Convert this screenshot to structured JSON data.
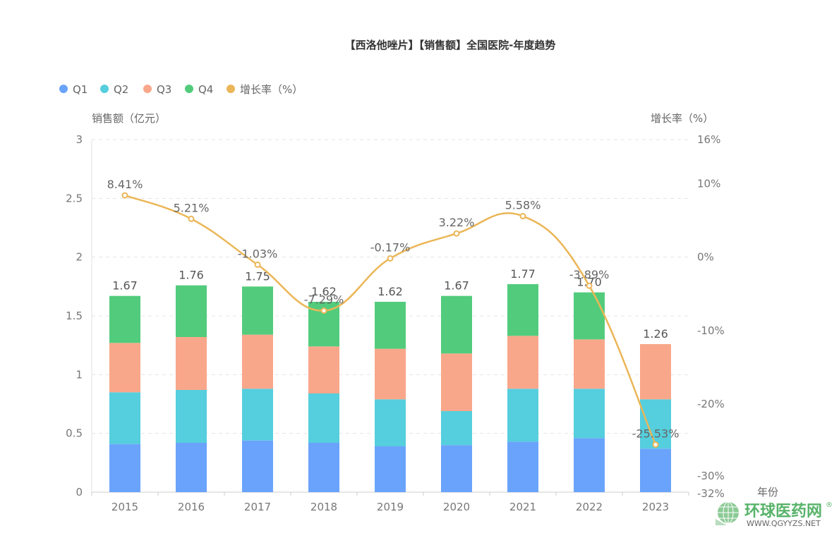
{
  "chart_data": {
    "type": "bar",
    "subtype": "stacked-bar-with-line",
    "title": "【西洛他唑片】【销售额】全国医院-年度趋势",
    "xlabel": "年份",
    "ylabel": "销售额（亿元）",
    "y2label": "增长率（%）",
    "categories": [
      "2015",
      "2016",
      "2017",
      "2018",
      "2019",
      "2020",
      "2021",
      "2022",
      "2023"
    ],
    "ylim": [
      0,
      3
    ],
    "yticks": [
      "0",
      "0.5",
      "1",
      "1.5",
      "2",
      "2.5",
      "3"
    ],
    "ytick_values": [
      0,
      0.5,
      1,
      1.5,
      2,
      2.5,
      3
    ],
    "y2lim": [
      -32,
      16
    ],
    "y2ticks": [
      "-32%",
      "-30%",
      "-20%",
      "-10%",
      "0%",
      "10%",
      "16%"
    ],
    "y2tick_values": [
      -32,
      -30,
      -20,
      -10,
      0,
      10,
      16
    ],
    "grid": true,
    "legend_position": "top-left",
    "legend": [
      {
        "name": "Q1",
        "color": "#6aa3fb"
      },
      {
        "name": "Q2",
        "color": "#55cedd"
      },
      {
        "name": "Q3",
        "color": "#f9a78a"
      },
      {
        "name": "Q4",
        "color": "#52cc7c"
      },
      {
        "name": "增长率（%）",
        "color": "#ebb657"
      }
    ],
    "series": [
      {
        "name": "Q1",
        "type": "bar",
        "stack": "total",
        "color": "#6aa3fb",
        "values": [
          0.41,
          0.42,
          0.44,
          0.42,
          0.39,
          0.4,
          0.43,
          0.46,
          0.37
        ]
      },
      {
        "name": "Q2",
        "type": "bar",
        "stack": "total",
        "color": "#55cedd",
        "values": [
          0.44,
          0.45,
          0.44,
          0.42,
          0.4,
          0.29,
          0.45,
          0.42,
          0.42
        ]
      },
      {
        "name": "Q3",
        "type": "bar",
        "stack": "total",
        "color": "#f9a78a",
        "values": [
          0.42,
          0.45,
          0.46,
          0.4,
          0.43,
          0.49,
          0.45,
          0.42,
          0.47
        ]
      },
      {
        "name": "Q4",
        "type": "bar",
        "stack": "total",
        "color": "#52cc7c",
        "values": [
          0.4,
          0.44,
          0.41,
          0.38,
          0.4,
          0.49,
          0.44,
          0.4,
          0
        ]
      },
      {
        "name": "增长率（%）",
        "type": "line",
        "axis": "right",
        "color": "#ebb657",
        "values": [
          8.41,
          5.21,
          -1.03,
          -7.29,
          -0.17,
          3.22,
          5.58,
          -3.89,
          -25.53
        ],
        "labels": [
          "8.41%",
          "5.21%",
          "-1.03%",
          "-7.29%",
          "-0.17%",
          "3.22%",
          "5.58%",
          "-3.89%",
          "-25.53%"
        ]
      }
    ],
    "totals": [
      1.67,
      1.76,
      1.75,
      1.62,
      1.62,
      1.67,
      1.77,
      1.7,
      1.26
    ],
    "total_labels": [
      "1.67",
      "1.76",
      "1.75",
      "1.62",
      "1.62",
      "1.67",
      "1.77",
      "1.70",
      "1.26"
    ]
  },
  "watermark": {
    "name_cn": "环球医药网",
    "url": "WWW.QGYYZS.NET",
    "registered": "®"
  }
}
